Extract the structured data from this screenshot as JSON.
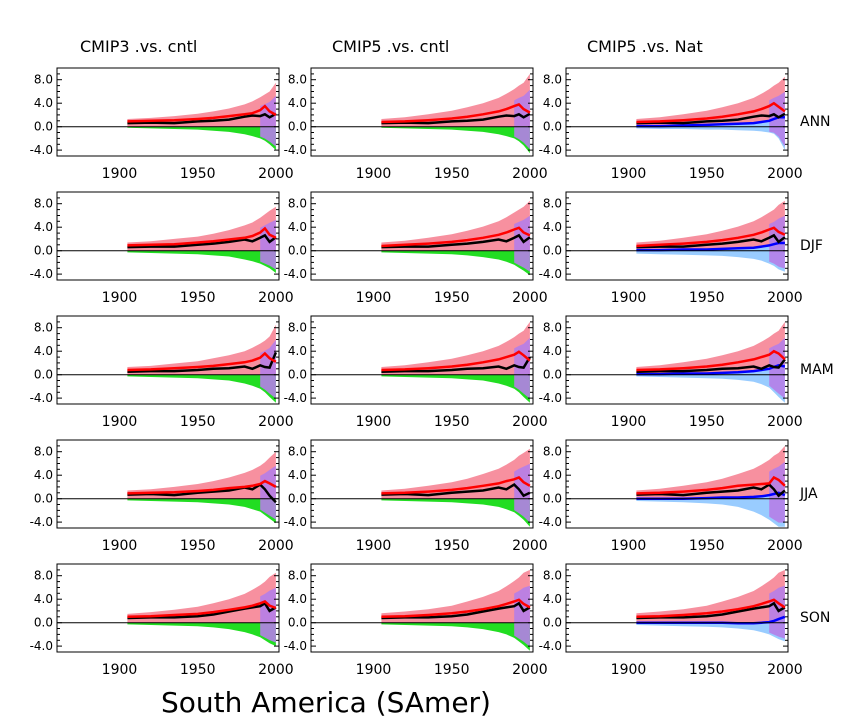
{
  "figure_title": "South America (SAmer)",
  "column_titles": [
    "CMIP3 .vs. cntl",
    "CMIP5 .vs. cntl",
    "CMIP5 .vs. Nat"
  ],
  "row_labels": [
    "ANN",
    "DJF",
    "MAM",
    "JJA",
    "SON"
  ],
  "colors": {
    "forced_band": "#f7909f",
    "forced_line": "#ff0000",
    "observed_line": "#000000",
    "control_band": "#22dd22",
    "natural_band": "#99ccff",
    "natural_line": "#0000ff",
    "overlap": "#b57ee8",
    "zero_line": "#000000"
  },
  "chart_data": {
    "type": "area",
    "grid": false,
    "legend": "none",
    "x_ticks": [
      "1900",
      "1950",
      "2000"
    ],
    "y_ticks": [
      "8.0",
      "4.0",
      "0.0",
      "-4.0"
    ],
    "xlim": [
      1860,
      2002
    ],
    "ylim": [
      -5,
      10
    ],
    "x_values": [
      1905,
      1920,
      1935,
      1950,
      1960,
      1970,
      1980,
      1985,
      1990,
      1993,
      1996,
      2000
    ],
    "panels": [
      {
        "row": "ANN",
        "column": "CMIP3 .vs. cntl",
        "forced_mean": [
          0.9,
          1.0,
          1.1,
          1.3,
          1.5,
          1.8,
          2.1,
          2.3,
          2.8,
          3.5,
          2.6,
          2.0
        ],
        "forced_upper": [
          1.3,
          1.5,
          1.8,
          2.2,
          2.6,
          3.1,
          3.8,
          4.3,
          5.0,
          5.5,
          6.0,
          7.5
        ],
        "observed": [
          0.6,
          0.7,
          0.6,
          0.9,
          1.0,
          1.2,
          1.7,
          1.9,
          1.8,
          2.1,
          1.6,
          2.2
        ],
        "control_lower": [
          -0.2,
          -0.3,
          -0.4,
          -0.5,
          -0.7,
          -0.9,
          -1.3,
          -1.6,
          -2.0,
          -2.4,
          -3.0,
          -4.0
        ]
      },
      {
        "row": "ANN",
        "column": "CMIP5 .vs. cntl",
        "forced_mean": [
          0.8,
          0.9,
          1.1,
          1.4,
          1.7,
          2.1,
          2.6,
          3.0,
          3.5,
          3.8,
          3.0,
          2.4
        ],
        "forced_upper": [
          1.3,
          1.6,
          2.1,
          2.7,
          3.3,
          4.0,
          4.9,
          5.6,
          6.4,
          7.0,
          7.5,
          9.0
        ],
        "observed": [
          0.6,
          0.7,
          0.6,
          0.9,
          1.0,
          1.2,
          1.7,
          1.9,
          1.8,
          2.1,
          1.6,
          2.2
        ],
        "control_lower": [
          -0.2,
          -0.3,
          -0.4,
          -0.5,
          -0.7,
          -0.9,
          -1.3,
          -1.6,
          -2.0,
          -2.5,
          -3.2,
          -4.5
        ]
      },
      {
        "row": "ANN",
        "column": "CMIP5 .vs. Nat",
        "forced_mean": [
          0.8,
          0.9,
          1.1,
          1.4,
          1.7,
          2.1,
          2.6,
          3.0,
          3.5,
          4.0,
          3.4,
          2.6
        ],
        "forced_upper": [
          1.3,
          1.6,
          2.1,
          2.7,
          3.3,
          4.0,
          4.9,
          5.6,
          6.4,
          7.0,
          7.5,
          8.5
        ],
        "observed": [
          0.6,
          0.7,
          0.6,
          0.9,
          1.0,
          1.2,
          1.7,
          1.9,
          1.8,
          2.1,
          1.6,
          2.2
        ],
        "natural_mean": [
          0.1,
          0.1,
          0.2,
          0.3,
          0.4,
          0.5,
          0.6,
          0.8,
          1.0,
          1.3,
          1.6,
          1.6
        ],
        "natural_lower": [
          -0.3,
          -0.4,
          -0.4,
          -0.5,
          -0.5,
          -0.6,
          -0.7,
          -0.8,
          -1.0,
          -1.2,
          -2.0,
          -4.0
        ]
      },
      {
        "row": "DJF",
        "column": "CMIP3 .vs. cntl",
        "forced_mean": [
          0.9,
          1.0,
          1.1,
          1.4,
          1.6,
          1.9,
          2.2,
          2.5,
          3.1,
          3.8,
          2.7,
          2.2
        ],
        "forced_upper": [
          1.4,
          1.6,
          2.0,
          2.4,
          2.9,
          3.5,
          4.3,
          4.8,
          5.6,
          6.2,
          6.8,
          7.5
        ],
        "observed": [
          0.6,
          0.7,
          0.7,
          1.0,
          1.2,
          1.5,
          1.9,
          1.6,
          2.2,
          2.6,
          1.5,
          2.3
        ],
        "control_lower": [
          -0.3,
          -0.4,
          -0.5,
          -0.6,
          -0.8,
          -1.0,
          -1.5,
          -1.8,
          -2.2,
          -2.6,
          -3.0,
          -3.8
        ]
      },
      {
        "row": "DJF",
        "column": "CMIP5 .vs. cntl",
        "forced_mean": [
          0.8,
          1.0,
          1.2,
          1.5,
          1.8,
          2.2,
          2.7,
          3.1,
          3.6,
          3.9,
          3.1,
          2.6
        ],
        "forced_upper": [
          1.4,
          1.7,
          2.2,
          2.8,
          3.4,
          4.1,
          5.0,
          5.7,
          6.5,
          7.0,
          7.5,
          8.5
        ],
        "observed": [
          0.6,
          0.7,
          0.7,
          1.0,
          1.2,
          1.5,
          1.9,
          1.6,
          2.2,
          2.6,
          1.5,
          2.3
        ],
        "control_lower": [
          -0.3,
          -0.4,
          -0.5,
          -0.6,
          -0.8,
          -1.1,
          -1.5,
          -1.9,
          -2.4,
          -2.9,
          -3.4,
          -4.2
        ]
      },
      {
        "row": "DJF",
        "column": "CMIP5 .vs. Nat",
        "forced_mean": [
          0.8,
          1.0,
          1.2,
          1.5,
          1.8,
          2.2,
          2.7,
          3.1,
          3.6,
          3.9,
          3.2,
          2.7
        ],
        "forced_upper": [
          1.4,
          1.7,
          2.2,
          2.8,
          3.4,
          4.1,
          5.0,
          5.7,
          6.5,
          7.0,
          7.8,
          8.5
        ],
        "observed": [
          0.6,
          0.7,
          0.7,
          1.0,
          1.2,
          1.5,
          1.9,
          1.6,
          2.2,
          2.6,
          1.5,
          2.3
        ],
        "natural_mean": [
          0.1,
          0.1,
          0.2,
          0.2,
          0.3,
          0.4,
          0.5,
          0.7,
          0.9,
          1.1,
          1.3,
          1.3
        ],
        "natural_lower": [
          -0.5,
          -0.6,
          -0.7,
          -0.8,
          -0.9,
          -1.1,
          -1.4,
          -1.7,
          -2.2,
          -2.6,
          -3.2,
          -3.6
        ]
      },
      {
        "row": "MAM",
        "column": "CMIP3 .vs. cntl",
        "forced_mean": [
          0.8,
          0.9,
          1.1,
          1.3,
          1.5,
          1.8,
          2.1,
          2.4,
          2.9,
          3.6,
          2.8,
          2.2
        ],
        "forced_upper": [
          1.3,
          1.5,
          1.9,
          2.3,
          2.8,
          3.3,
          4.0,
          4.6,
          5.3,
          5.8,
          6.5,
          8.5
        ],
        "observed": [
          0.5,
          0.6,
          0.6,
          0.8,
          1.0,
          1.1,
          1.4,
          1.0,
          1.6,
          1.3,
          1.2,
          3.8
        ],
        "control_lower": [
          -0.3,
          -0.4,
          -0.5,
          -0.6,
          -0.8,
          -1.0,
          -1.5,
          -1.9,
          -2.4,
          -3.0,
          -3.8,
          -4.8
        ]
      },
      {
        "row": "MAM",
        "column": "CMIP5 .vs. cntl",
        "forced_mean": [
          0.8,
          0.9,
          1.1,
          1.4,
          1.7,
          2.1,
          2.6,
          3.0,
          3.4,
          3.9,
          3.3,
          2.4
        ],
        "forced_upper": [
          1.3,
          1.6,
          2.1,
          2.7,
          3.3,
          4.0,
          4.9,
          5.6,
          6.4,
          7.0,
          7.5,
          9.0
        ],
        "observed": [
          0.5,
          0.6,
          0.6,
          0.8,
          1.0,
          1.1,
          1.4,
          1.0,
          1.6,
          1.3,
          1.2,
          3.0
        ],
        "control_lower": [
          -0.3,
          -0.4,
          -0.5,
          -0.6,
          -0.8,
          -1.0,
          -1.5,
          -1.9,
          -2.4,
          -3.0,
          -3.8,
          -4.8
        ]
      },
      {
        "row": "MAM",
        "column": "CMIP5 .vs. Nat",
        "forced_mean": [
          0.8,
          0.9,
          1.1,
          1.4,
          1.7,
          2.1,
          2.6,
          3.0,
          3.4,
          4.0,
          3.6,
          2.6
        ],
        "forced_upper": [
          1.3,
          1.6,
          2.1,
          2.7,
          3.3,
          4.0,
          4.9,
          5.6,
          6.4,
          7.0,
          7.5,
          9.0
        ],
        "observed": [
          0.5,
          0.6,
          0.6,
          0.8,
          1.0,
          1.1,
          1.4,
          1.0,
          1.6,
          1.3,
          1.2,
          2.6
        ],
        "natural_mean": [
          0.1,
          0.1,
          0.2,
          0.2,
          0.3,
          0.4,
          0.6,
          0.8,
          1.0,
          1.3,
          1.6,
          1.4
        ],
        "natural_lower": [
          -0.3,
          -0.4,
          -0.5,
          -0.6,
          -0.7,
          -0.9,
          -1.2,
          -1.6,
          -2.2,
          -3.0,
          -3.8,
          -4.8
        ]
      },
      {
        "row": "JJA",
        "column": "CMIP3 .vs. cntl",
        "forced_mean": [
          0.9,
          1.0,
          1.1,
          1.3,
          1.5,
          1.8,
          2.0,
          2.2,
          2.5,
          3.0,
          2.6,
          2.0
        ],
        "forced_upper": [
          1.4,
          1.6,
          2.0,
          2.5,
          3.0,
          3.6,
          4.4,
          4.9,
          5.6,
          6.2,
          7.0,
          8.0
        ],
        "observed": [
          0.7,
          0.8,
          0.6,
          1.0,
          1.2,
          1.4,
          1.9,
          1.6,
          2.4,
          1.6,
          0.5,
          -0.6
        ],
        "control_lower": [
          -0.3,
          -0.4,
          -0.5,
          -0.6,
          -0.8,
          -1.0,
          -1.4,
          -1.8,
          -2.2,
          -2.8,
          -3.4,
          -4.2
        ]
      },
      {
        "row": "JJA",
        "column": "CMIP5 .vs. cntl",
        "forced_mean": [
          0.9,
          1.0,
          1.2,
          1.5,
          1.8,
          2.2,
          2.6,
          3.0,
          3.3,
          3.6,
          2.8,
          2.2
        ],
        "forced_upper": [
          1.4,
          1.7,
          2.2,
          2.8,
          3.4,
          4.2,
          5.1,
          5.8,
          6.6,
          7.3,
          7.8,
          8.5
        ],
        "observed": [
          0.7,
          0.8,
          0.6,
          1.0,
          1.2,
          1.4,
          1.9,
          1.6,
          2.4,
          1.6,
          0.5,
          1.0
        ],
        "control_lower": [
          -0.3,
          -0.4,
          -0.5,
          -0.6,
          -0.8,
          -1.0,
          -1.4,
          -1.8,
          -2.3,
          -2.9,
          -3.6,
          -4.8
        ]
      },
      {
        "row": "JJA",
        "column": "CMIP5 .vs. Nat",
        "forced_mean": [
          0.9,
          1.0,
          1.2,
          1.5,
          1.8,
          2.2,
          2.4,
          2.5,
          2.6,
          3.6,
          3.2,
          2.2
        ],
        "forced_upper": [
          1.4,
          1.7,
          2.2,
          2.8,
          3.4,
          4.2,
          5.1,
          5.8,
          6.6,
          7.3,
          7.8,
          9.0
        ],
        "observed": [
          0.7,
          0.8,
          0.6,
          1.0,
          1.2,
          1.4,
          1.9,
          1.6,
          2.4,
          1.6,
          0.5,
          1.4
        ],
        "natural_mean": [
          0.0,
          0.0,
          0.0,
          0.1,
          0.2,
          0.2,
          0.3,
          0.4,
          0.6,
          0.8,
          1.0,
          0.6
        ],
        "natural_lower": [
          -0.4,
          -0.5,
          -0.6,
          -0.8,
          -1.0,
          -1.4,
          -2.2,
          -2.8,
          -3.6,
          -4.2,
          -4.8,
          -4.8
        ]
      },
      {
        "row": "SON",
        "column": "CMIP3 .vs. cntl",
        "forced_mean": [
          1.0,
          1.1,
          1.3,
          1.5,
          1.8,
          2.2,
          2.6,
          2.9,
          3.3,
          3.6,
          2.9,
          2.5
        ],
        "forced_upper": [
          1.5,
          1.8,
          2.2,
          2.7,
          3.3,
          4.0,
          4.9,
          5.6,
          6.4,
          7.0,
          7.8,
          8.5
        ],
        "observed": [
          0.8,
          0.9,
          0.9,
          1.1,
          1.4,
          1.9,
          2.4,
          2.6,
          2.8,
          3.3,
          2.0,
          2.6
        ],
        "control_lower": [
          -0.3,
          -0.4,
          -0.5,
          -0.6,
          -0.8,
          -1.1,
          -1.6,
          -2.0,
          -2.5,
          -3.0,
          -3.5,
          -4.0
        ]
      },
      {
        "row": "SON",
        "column": "CMIP5 .vs. cntl",
        "forced_mean": [
          1.0,
          1.1,
          1.3,
          1.6,
          1.9,
          2.3,
          2.8,
          3.2,
          3.6,
          3.9,
          3.2,
          2.6
        ],
        "forced_upper": [
          1.6,
          1.9,
          2.3,
          2.9,
          3.6,
          4.4,
          5.4,
          6.2,
          7.1,
          7.7,
          8.5,
          9.0
        ],
        "observed": [
          0.8,
          0.9,
          0.9,
          1.1,
          1.4,
          1.9,
          2.4,
          2.6,
          2.8,
          3.3,
          2.0,
          2.6
        ],
        "control_lower": [
          -0.3,
          -0.4,
          -0.5,
          -0.6,
          -0.8,
          -1.1,
          -1.6,
          -2.0,
          -2.6,
          -3.2,
          -3.8,
          -4.8
        ]
      },
      {
        "row": "SON",
        "column": "CMIP5 .vs. Nat",
        "forced_mean": [
          1.0,
          1.1,
          1.3,
          1.6,
          1.9,
          2.3,
          2.8,
          3.2,
          3.6,
          3.9,
          3.3,
          2.6
        ],
        "forced_upper": [
          1.6,
          1.9,
          2.3,
          2.9,
          3.6,
          4.4,
          5.4,
          6.2,
          7.1,
          7.7,
          8.5,
          9.0
        ],
        "observed": [
          0.8,
          0.9,
          0.9,
          1.1,
          1.4,
          1.9,
          2.4,
          2.6,
          2.8,
          3.3,
          2.0,
          2.6
        ],
        "natural_mean": [
          0.0,
          0.0,
          0.0,
          0.0,
          0.0,
          -0.1,
          -0.1,
          0.0,
          0.1,
          0.3,
          0.6,
          1.0
        ],
        "natural_lower": [
          -0.4,
          -0.5,
          -0.6,
          -0.7,
          -0.8,
          -1.0,
          -1.3,
          -1.6,
          -2.0,
          -2.4,
          -2.8,
          -3.2
        ]
      }
    ]
  }
}
